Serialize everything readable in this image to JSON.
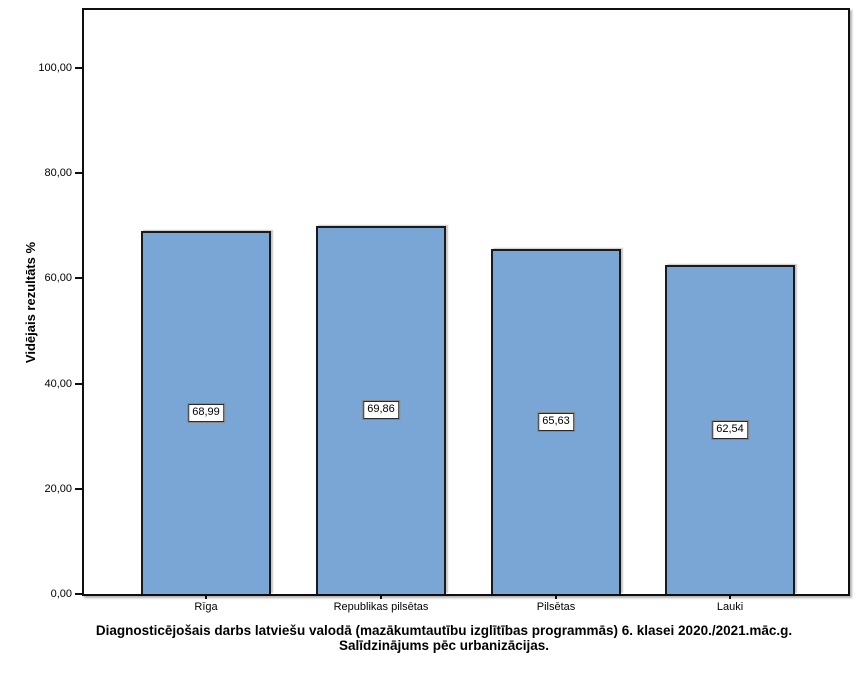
{
  "chart_data": {
    "type": "bar",
    "title_lines": [
      "Diagnosticējošais darbs latviešu valodā (mazākumtautību izglītības programmās) 6. klasei 2020./2021.māc.g.",
      "Salīdzinājums pēc urbanizācijas."
    ],
    "ylabel": "Vidējais rezultāts %",
    "xlabel": "",
    "categories": [
      "Rīga",
      "Republikas pilsētas",
      "Pilsētas",
      "Lauki"
    ],
    "values": [
      68.99,
      69.86,
      65.63,
      62.54
    ],
    "value_labels": [
      "68,99",
      "69,86",
      "65,63",
      "62,54"
    ],
    "yticks": [
      {
        "value": 0,
        "label": "0,00"
      },
      {
        "value": 20,
        "label": "20,00"
      },
      {
        "value": 40,
        "label": "40,00"
      },
      {
        "value": 60,
        "label": "60,00"
      },
      {
        "value": 80,
        "label": "80,00"
      },
      {
        "value": 100,
        "label": "100,00"
      }
    ],
    "ylim": [
      0,
      111
    ],
    "grid": false,
    "legend": false,
    "bar_color": "#7aa6d6",
    "bar_border_color": "#1a1a1a",
    "frame_color": "#0f0f0f",
    "text_color": "#000000"
  }
}
